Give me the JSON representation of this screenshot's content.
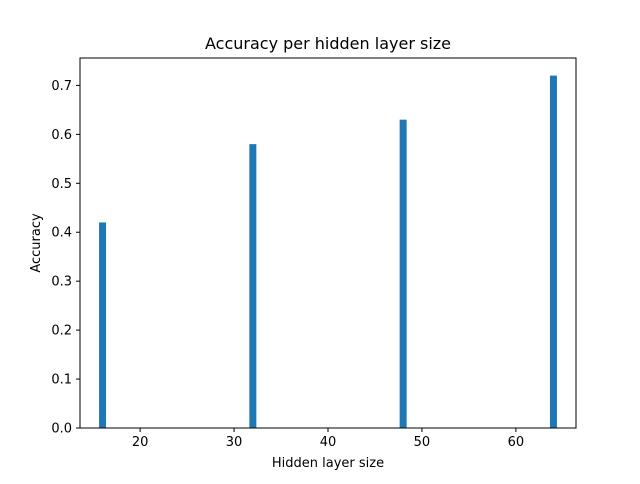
{
  "chart_data": {
    "type": "bar",
    "title": "Accuracy per hidden layer size",
    "xlabel": "Hidden layer size",
    "ylabel": "Accuracy",
    "x": [
      16,
      32,
      48,
      64
    ],
    "values": [
      0.42,
      0.58,
      0.63,
      0.72
    ],
    "xlim": [
      13.6,
      66.4
    ],
    "ylim": [
      0,
      0.756
    ],
    "xticks": [
      20,
      30,
      40,
      50,
      60
    ],
    "yticks": [
      0.0,
      0.1,
      0.2,
      0.3,
      0.4,
      0.5,
      0.6,
      0.7
    ],
    "bar_color": "#1f77b4",
    "grid": false,
    "legend": false
  }
}
